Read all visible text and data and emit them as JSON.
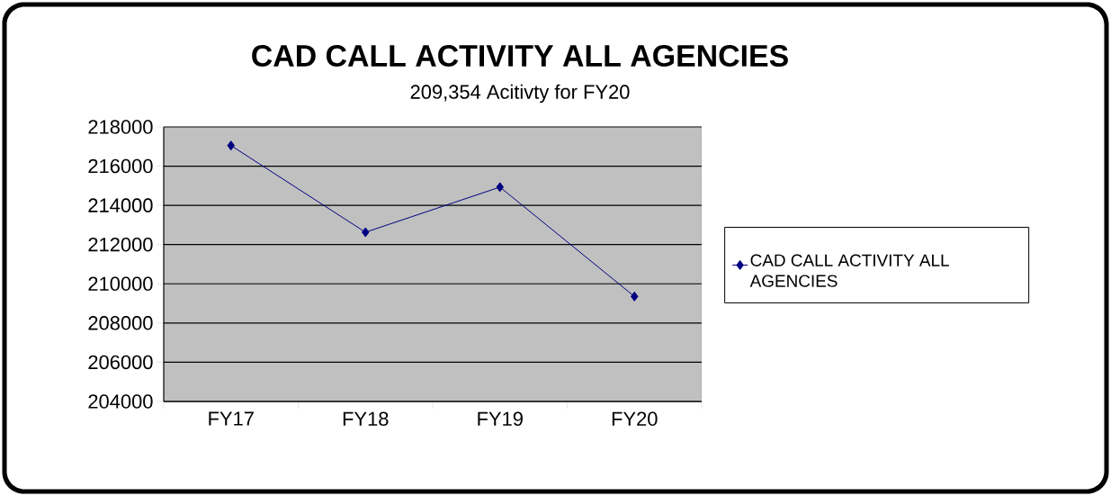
{
  "chart_data": {
    "type": "line",
    "title": "CAD CALL ACTIVITY ALL AGENCIES",
    "subtitle": "209,354  Acitivty for FY20",
    "categories": [
      "FY17",
      "FY18",
      "FY19",
      "FY20"
    ],
    "series": [
      {
        "name": "CAD CALL ACTIVITY ALL AGENCIES",
        "color": "#000080",
        "values": [
          217050,
          212630,
          214930,
          209354
        ]
      }
    ],
    "ylim": [
      204000,
      218000
    ],
    "yticks": [
      204000,
      206000,
      208000,
      210000,
      212000,
      214000,
      216000,
      218000
    ],
    "grid": "y",
    "legend": "right",
    "marker": "diamond",
    "line_style": "solid"
  }
}
